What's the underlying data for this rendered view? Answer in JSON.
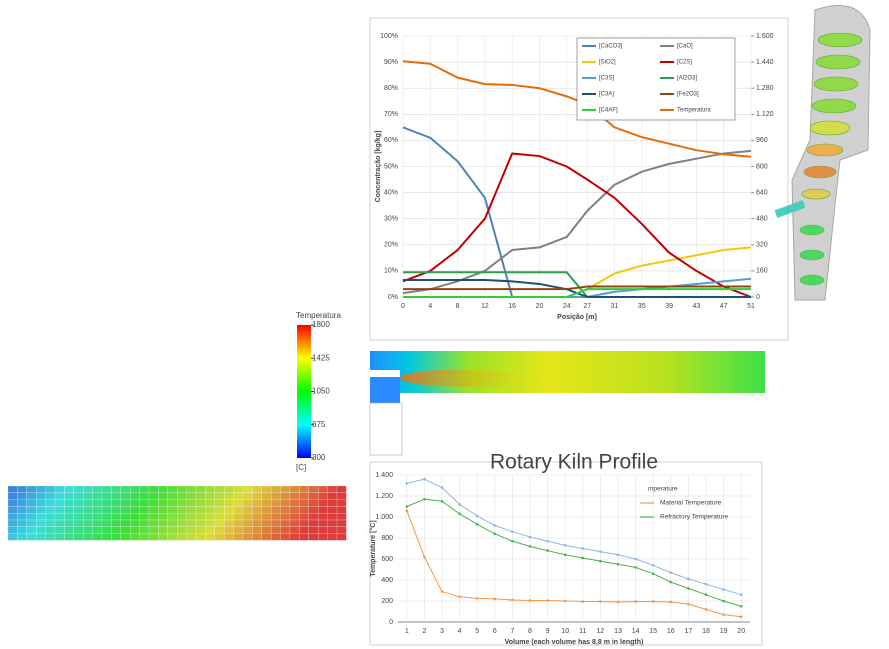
{
  "chart_data": [
    {
      "type": "line",
      "ylabel": "Concentração [kg/kg]",
      "xlabel": "Posição [m]",
      "x": [
        0,
        4,
        8,
        12,
        16,
        20,
        24,
        27,
        31,
        35,
        39,
        43,
        47,
        51
      ],
      "xlim": [
        0,
        51
      ],
      "xticks": [
        0,
        4,
        8,
        12,
        16,
        20,
        24,
        27,
        31,
        35,
        39,
        43,
        47,
        51
      ],
      "ylim": [
        0,
        100
      ],
      "yticks": [
        {
          "value": 0,
          "label": "0%"
        },
        {
          "value": 10,
          "label": "10%"
        },
        {
          "value": 20,
          "label": "20%"
        },
        {
          "value": 30,
          "label": "30%"
        },
        {
          "value": 40,
          "label": "40%"
        },
        {
          "value": 50,
          "label": "50%"
        },
        {
          "value": 60,
          "label": "60%"
        },
        {
          "value": 70,
          "label": "70%"
        },
        {
          "value": 80,
          "label": "80%"
        },
        {
          "value": 90,
          "label": "90%"
        },
        {
          "value": 100,
          "label": "100%"
        }
      ],
      "y2lim": [
        0,
        1600
      ],
      "y2ticks": [
        0,
        160,
        320,
        480,
        640,
        800,
        960,
        {
          "value": 1120,
          "label": "1.120"
        },
        {
          "value": 1280,
          "label": "1.280"
        },
        {
          "value": 1440,
          "label": "1.440"
        },
        {
          "value": 1600,
          "label": "1.600"
        }
      ],
      "grid": true,
      "legend": "upper right",
      "series": [
        {
          "name": "[CaCO3]",
          "color": "#4f81bd",
          "values": [
            65,
            61,
            52,
            38,
            0,
            0,
            0,
            0,
            0,
            0,
            0,
            0,
            0,
            0
          ]
        },
        {
          "name": "[CaO]",
          "color": "#808080",
          "values": [
            1.5,
            3,
            6,
            10,
            18,
            19,
            23,
            33,
            43,
            48,
            51,
            53,
            55,
            56
          ]
        },
        {
          "name": "[SiO2]",
          "color": "#f2c80f",
          "values": [
            0,
            0,
            0,
            0,
            0,
            0,
            0,
            3,
            9,
            12,
            14,
            16,
            18,
            19
          ]
        },
        {
          "name": "[C2S]",
          "color": "#c00000",
          "values": [
            6,
            10,
            18,
            30,
            55,
            54,
            50,
            45,
            38,
            28,
            17,
            10,
            4,
            0
          ]
        },
        {
          "name": "[C3S]",
          "color": "#5b9bd5",
          "values": [
            0,
            0,
            0,
            0,
            0,
            0,
            0,
            0,
            2,
            3,
            4,
            5,
            6,
            7
          ]
        },
        {
          "name": "[Al2O3]",
          "color": "#2e9e4f",
          "values": [
            9.5,
            9.5,
            9.5,
            9.5,
            9.5,
            9.5,
            9.5,
            0,
            0,
            0,
            0,
            0,
            0,
            0
          ]
        },
        {
          "name": "[C3A]",
          "color": "#1f4e79",
          "values": [
            6.5,
            6.5,
            6.5,
            6.5,
            6,
            5,
            3,
            0,
            0,
            0,
            0,
            0,
            0,
            0
          ]
        },
        {
          "name": "[Fe2O3]",
          "color": "#8b4513",
          "values": [
            3,
            3,
            3,
            3,
            3,
            3,
            3,
            4,
            4,
            4,
            4,
            4,
            4,
            4
          ]
        },
        {
          "name": "[C4AF]",
          "color": "#33cc33",
          "values": [
            0,
            0,
            0,
            0,
            0,
            0,
            0,
            3,
            3,
            3,
            3,
            3,
            3,
            3
          ]
        },
        {
          "name": "Temperatura",
          "color": "#e46c0a",
          "axis": "y2",
          "values": [
            1445,
            1430,
            1345,
            1305,
            1300,
            1280,
            1230,
            1180,
            1040,
            980,
            940,
            900,
            875,
            860
          ]
        }
      ]
    },
    {
      "type": "colorbar",
      "title": "Temperatura",
      "unit": "[C]",
      "ylim": [
        300,
        1800
      ],
      "yticks": [
        300,
        675,
        1050,
        1425,
        1800
      ],
      "colors": [
        "#0000ff",
        "#00ffff",
        "#00ff00",
        "#ffff00",
        "#ff0000"
      ]
    },
    {
      "type": "line",
      "title": "Rotary Kiln Profile",
      "ylabel": "Temperature [°C]",
      "xlabel": "Volume (each volume has 8,8 m in length)",
      "x": [
        1,
        2,
        3,
        4,
        5,
        6,
        7,
        8,
        9,
        10,
        11,
        12,
        13,
        14,
        15,
        16,
        17,
        18,
        19,
        20
      ],
      "xlim": [
        0.5,
        20.5
      ],
      "xticks": [
        1,
        2,
        3,
        4,
        5,
        6,
        7,
        8,
        9,
        10,
        11,
        12,
        13,
        14,
        15,
        16,
        17,
        18,
        19,
        20
      ],
      "ylim": [
        0,
        1400
      ],
      "yticks": [
        0,
        200,
        400,
        600,
        800,
        {
          "value": 1000,
          "label": "1.000"
        },
        {
          "value": 1200,
          "label": "1.200"
        },
        {
          "value": 1400,
          "label": "1.400"
        }
      ],
      "grid": true,
      "legend": "upper right",
      "series": [
        {
          "name": "mperature",
          "color": "#8fb4e3",
          "values": [
            1320,
            1360,
            1280,
            1120,
            1010,
            920,
            860,
            810,
            770,
            730,
            700,
            670,
            640,
            600,
            540,
            470,
            410,
            360,
            310,
            260
          ]
        },
        {
          "name": "Material Temperature",
          "color": "#f79646",
          "values": [
            1060,
            620,
            290,
            240,
            225,
            220,
            210,
            205,
            205,
            200,
            195,
            195,
            190,
            195,
            195,
            190,
            170,
            120,
            70,
            50
          ]
        },
        {
          "name": "Refractory Temperature",
          "color": "#4caf50",
          "values": [
            1100,
            1170,
            1150,
            1030,
            930,
            840,
            770,
            720,
            680,
            640,
            610,
            580,
            550,
            520,
            460,
            380,
            320,
            260,
            200,
            150
          ]
        }
      ]
    }
  ]
}
